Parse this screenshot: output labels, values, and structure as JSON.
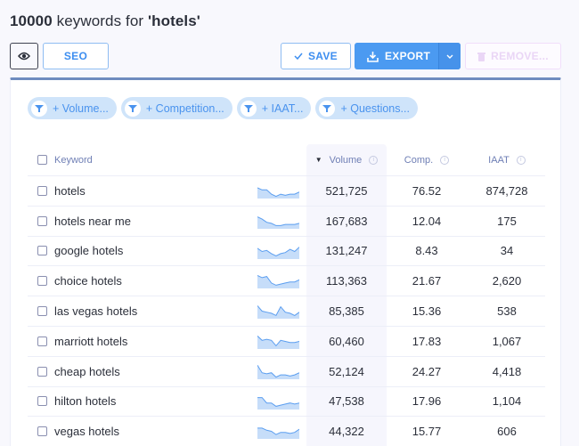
{
  "header": {
    "count": "10000",
    "title_rest": " keywords for ",
    "query": "'hotels'"
  },
  "toolbar": {
    "view_icon": "eye-icon",
    "seo_label": "SEO",
    "save_label": "SAVE",
    "export_label": "EXPORT",
    "remove_label": "REMOVE...",
    "colors": {
      "accent": "#4b9af1",
      "disabled": "#ead6f6"
    }
  },
  "filters": [
    {
      "label": "+ Volume...",
      "icon": "filter-icon"
    },
    {
      "label": "+ Competition...",
      "icon": "filter-icon"
    },
    {
      "label": "+ IAAT...",
      "icon": "filter-icon"
    },
    {
      "label": "+ Questions...",
      "icon": "filter-icon"
    }
  ],
  "table": {
    "columns": {
      "keyword": "Keyword",
      "volume": "Volume",
      "comp": "Comp.",
      "iaat": "IAAT"
    },
    "sort": {
      "column": "volume",
      "direction": "desc"
    },
    "rows": [
      {
        "keyword": "hotels",
        "volume": "521,725",
        "comp": "76.52",
        "iaat": "874,728",
        "trend": [
          10,
          8,
          8,
          4,
          2,
          4,
          3,
          4,
          4,
          6
        ]
      },
      {
        "keyword": "hotels near me",
        "volume": "167,683",
        "comp": "12.04",
        "iaat": "175",
        "trend": [
          11,
          9,
          6,
          5,
          3,
          3,
          4,
          4,
          4,
          5
        ]
      },
      {
        "keyword": "google hotels",
        "volume": "131,247",
        "comp": "8.43",
        "iaat": "34",
        "trend": [
          10,
          7,
          8,
          5,
          3,
          5,
          6,
          9,
          7,
          11
        ]
      },
      {
        "keyword": "choice hotels",
        "volume": "113,363",
        "comp": "21.67",
        "iaat": "2,620",
        "trend": [
          12,
          10,
          11,
          5,
          3,
          4,
          5,
          6,
          6,
          8
        ]
      },
      {
        "keyword": "las vegas hotels",
        "volume": "85,385",
        "comp": "15.36",
        "iaat": "538",
        "trend": [
          12,
          7,
          6,
          5,
          3,
          11,
          6,
          5,
          3,
          6
        ]
      },
      {
        "keyword": "marriott hotels",
        "volume": "60,460",
        "comp": "17.83",
        "iaat": "1,067",
        "trend": [
          12,
          8,
          9,
          8,
          3,
          8,
          7,
          6,
          6,
          7
        ]
      },
      {
        "keyword": "cheap hotels",
        "volume": "52,124",
        "comp": "24.27",
        "iaat": "4,418",
        "trend": [
          13,
          6,
          5,
          6,
          2,
          4,
          4,
          3,
          4,
          6
        ]
      },
      {
        "keyword": "hilton hotels",
        "volume": "47,538",
        "comp": "17.96",
        "iaat": "1,104",
        "trend": [
          11,
          11,
          6,
          6,
          3,
          4,
          5,
          6,
          5,
          6
        ]
      },
      {
        "keyword": "vegas hotels",
        "volume": "44,322",
        "comp": "15.77",
        "iaat": "606",
        "trend": [
          10,
          10,
          8,
          7,
          4,
          6,
          6,
          5,
          6,
          9
        ]
      }
    ]
  }
}
